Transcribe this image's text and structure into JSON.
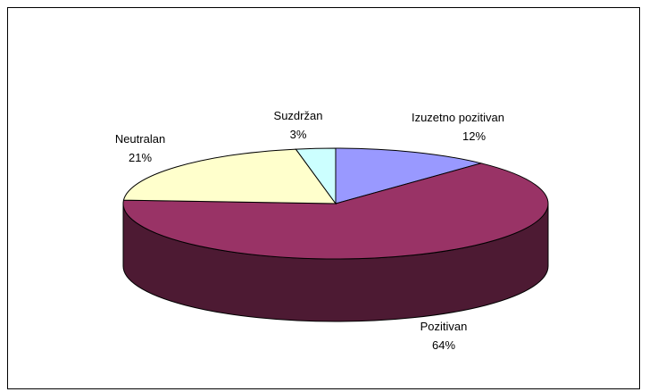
{
  "chart_data": {
    "type": "pie",
    "style": "3d",
    "title": "",
    "slices": [
      {
        "label": "Izuzetno pozitivan",
        "value": 12,
        "value_label": "12%",
        "color": "#9999ff"
      },
      {
        "label": "Pozitivan",
        "value": 64,
        "value_label": "64%",
        "color": "#993366"
      },
      {
        "label": "Neutralan",
        "value": 21,
        "value_label": "21%",
        "color": "#ffffcc"
      },
      {
        "label": "Suzdržan",
        "value": 3,
        "value_label": "3%",
        "color": "#ccffff"
      }
    ]
  }
}
